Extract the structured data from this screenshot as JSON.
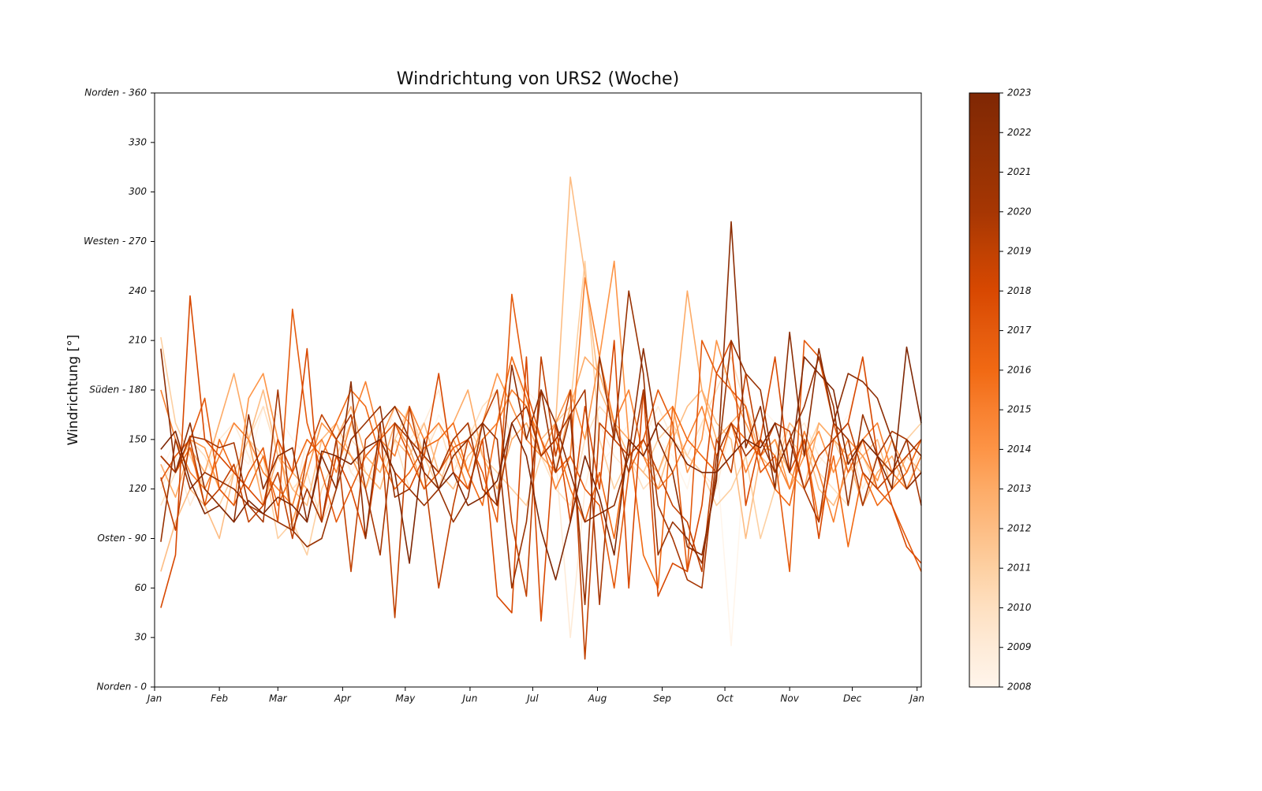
{
  "chart_data": {
    "type": "line",
    "title": "Windrichtung von URS2 (Woche)",
    "ylabel": "Windrichtung [°]",
    "x": [
      3,
      10,
      17,
      24,
      31,
      38,
      45,
      52,
      59,
      66,
      73,
      80,
      87,
      94,
      101,
      108,
      115,
      122,
      129,
      136,
      143,
      150,
      157,
      164,
      171,
      178,
      185,
      192,
      199,
      206,
      213,
      220,
      227,
      234,
      241,
      248,
      255,
      262,
      269,
      276,
      283,
      290,
      297,
      304,
      311,
      318,
      325,
      332,
      339,
      346,
      353,
      360,
      367
    ],
    "xlim": [
      0,
      367
    ],
    "xticks": [
      {
        "value": 0,
        "label": "Jan"
      },
      {
        "value": 31,
        "label": "Feb"
      },
      {
        "value": 59,
        "label": "Mar"
      },
      {
        "value": 90,
        "label": "Apr"
      },
      {
        "value": 120,
        "label": "May"
      },
      {
        "value": 151,
        "label": "Jun"
      },
      {
        "value": 181,
        "label": "Jul"
      },
      {
        "value": 212,
        "label": "Aug"
      },
      {
        "value": 243,
        "label": "Sep"
      },
      {
        "value": 273,
        "label": "Oct"
      },
      {
        "value": 304,
        "label": "Nov"
      },
      {
        "value": 334,
        "label": "Dec"
      },
      {
        "value": 365,
        "label": "Jan"
      }
    ],
    "ylim": [
      0,
      360
    ],
    "yticks": [
      {
        "value": 0,
        "label": "Norden - 0"
      },
      30,
      60,
      {
        "value": 90,
        "label": "Osten - 90"
      },
      120,
      150,
      {
        "value": 180,
        "label": "Süden - 180"
      },
      210,
      240,
      {
        "value": 270,
        "label": "Westen - 270"
      },
      300,
      330,
      {
        "value": 360,
        "label": "Norden - 360"
      }
    ],
    "series": [
      {
        "name": "2008",
        "color": "#fff5eb",
        "values": [
          130,
          150,
          140,
          160,
          150,
          145,
          135,
          170,
          165,
          150,
          140,
          160,
          150,
          130,
          145,
          170,
          160,
          150,
          140,
          165,
          150,
          145,
          160,
          175,
          190,
          180,
          170,
          160,
          150,
          140,
          135,
          145,
          160,
          170,
          150,
          140,
          120,
          160,
          140,
          25,
          150,
          170,
          160,
          150,
          140,
          135,
          150,
          165,
          195,
          140,
          120,
          130,
          135
        ]
      },
      {
        "name": "2009",
        "color": "#feebd8",
        "values": [
          120,
          140,
          110,
          130,
          150,
          160,
          140,
          120,
          130,
          110,
          150,
          140,
          160,
          130,
          120,
          140,
          170,
          150,
          160,
          180,
          140,
          120,
          150,
          160,
          200,
          170,
          150,
          140,
          30,
          120,
          160,
          140,
          130,
          150,
          170,
          150,
          140,
          130,
          120,
          160,
          150,
          140,
          130,
          150,
          160,
          140,
          130,
          150,
          120,
          140,
          130,
          120,
          145
        ]
      },
      {
        "name": "2010",
        "color": "#fee0c1",
        "values": [
          110,
          130,
          150,
          140,
          120,
          130,
          150,
          170,
          140,
          120,
          130,
          100,
          120,
          150,
          140,
          130,
          150,
          120,
          140,
          160,
          130,
          150,
          170,
          180,
          150,
          160,
          140,
          120,
          110,
          150,
          170,
          160,
          140,
          120,
          130,
          150,
          140,
          160,
          180,
          200,
          170,
          150,
          140,
          160,
          150,
          130,
          120,
          110,
          150,
          140,
          130,
          120,
          140
        ]
      },
      {
        "name": "2011",
        "color": "#fdd0a2",
        "values": [
          212,
          160,
          140,
          120,
          110,
          130,
          150,
          140,
          90,
          100,
          80,
          120,
          140,
          160,
          130,
          120,
          150,
          170,
          140,
          120,
          150,
          160,
          140,
          130,
          120,
          110,
          140,
          160,
          170,
          258,
          150,
          120,
          140,
          130,
          150,
          160,
          140,
          130,
          110,
          120,
          140,
          90,
          120,
          150,
          140,
          160,
          150,
          130,
          140,
          120,
          130,
          150,
          160
        ]
      },
      {
        "name": "2012",
        "color": "#fdbd84",
        "values": [
          70,
          100,
          120,
          110,
          90,
          130,
          150,
          180,
          140,
          120,
          110,
          150,
          160,
          140,
          130,
          120,
          150,
          140,
          160,
          130,
          120,
          140,
          150,
          160,
          180,
          170,
          150,
          160,
          309,
          250,
          180,
          160,
          140,
          130,
          120,
          150,
          170,
          180,
          160,
          150,
          90,
          140,
          130,
          160,
          150,
          120,
          110,
          130,
          140,
          150,
          120,
          140,
          130
        ]
      },
      {
        "name": "2013",
        "color": "#fdab67",
        "values": [
          135,
          115,
          145,
          130,
          160,
          190,
          150,
          110,
          140,
          130,
          120,
          100,
          150,
          170,
          140,
          130,
          160,
          145,
          120,
          150,
          160,
          180,
          140,
          120,
          150,
          160,
          140,
          130,
          170,
          200,
          190,
          160,
          150,
          140,
          130,
          155,
          240,
          180,
          150,
          160,
          170,
          140,
          150,
          130,
          120,
          160,
          150,
          140,
          110,
          130,
          140,
          120,
          130
        ]
      },
      {
        "name": "2014",
        "color": "#fd9446",
        "values": [
          140,
          130,
          150,
          145,
          120,
          110,
          175,
          190,
          150,
          100,
          130,
          160,
          150,
          140,
          120,
          150,
          170,
          160,
          140,
          130,
          150,
          130,
          160,
          190,
          170,
          150,
          140,
          160,
          180,
          150,
          200,
          258,
          150,
          140,
          160,
          170,
          130,
          150,
          210,
          180,
          160,
          140,
          150,
          120,
          140,
          155,
          130,
          150,
          140,
          125,
          150,
          130,
          150
        ]
      },
      {
        "name": "2015",
        "color": "#f8802f",
        "values": [
          180,
          150,
          130,
          120,
          140,
          160,
          150,
          130,
          120,
          110,
          140,
          150,
          130,
          160,
          185,
          150,
          140,
          170,
          150,
          160,
          145,
          120,
          150,
          160,
          180,
          170,
          150,
          120,
          140,
          248,
          200,
          160,
          180,
          140,
          120,
          130,
          150,
          170,
          140,
          160,
          130,
          150,
          140,
          120,
          155,
          130,
          100,
          140,
          150,
          160,
          130,
          120,
          140
        ]
      },
      {
        "name": "2016",
        "color": "#f16913",
        "values": [
          140,
          130,
          145,
          110,
          150,
          130,
          120,
          140,
          110,
          130,
          150,
          140,
          160,
          180,
          170,
          140,
          120,
          130,
          145,
          150,
          160,
          130,
          110,
          160,
          200,
          175,
          140,
          150,
          120,
          100,
          130,
          90,
          150,
          80,
          60,
          170,
          150,
          140,
          130,
          160,
          150,
          140,
          120,
          110,
          150,
          100,
          140,
          85,
          130,
          110,
          120,
          130,
          150
        ]
      },
      {
        "name": "2017",
        "color": "#e45a0d",
        "values": [
          125,
          140,
          150,
          175,
          120,
          110,
          130,
          145,
          100,
          229,
          160,
          130,
          100,
          120,
          140,
          150,
          160,
          140,
          120,
          130,
          145,
          150,
          130,
          100,
          238,
          180,
          150,
          130,
          140,
          120,
          110,
          60,
          130,
          150,
          180,
          160,
          70,
          210,
          190,
          180,
          170,
          130,
          140,
          70,
          210,
          200,
          160,
          130,
          150,
          120,
          110,
          90,
          70
        ]
      },
      {
        "name": "2018",
        "color": "#d84801",
        "values": [
          48,
          80,
          237,
          150,
          140,
          130,
          120,
          110,
          150,
          130,
          205,
          100,
          140,
          120,
          90,
          150,
          130,
          120,
          140,
          190,
          130,
          120,
          150,
          55,
          45,
          200,
          40,
          160,
          100,
          170,
          120,
          210,
          60,
          180,
          55,
          75,
          70,
          110,
          190,
          210,
          110,
          150,
          200,
          130,
          150,
          90,
          150,
          160,
          200,
          140,
          110,
          85,
          75
        ]
      },
      {
        "name": "2019",
        "color": "#c04102",
        "values": [
          127,
          95,
          150,
          110,
          120,
          135,
          100,
          110,
          130,
          90,
          140,
          165,
          150,
          70,
          150,
          160,
          42,
          170,
          130,
          60,
          110,
          150,
          160,
          180,
          100,
          55,
          200,
          140,
          180,
          17,
          160,
          150,
          140,
          150,
          130,
          110,
          100,
          70,
          150,
          130,
          190,
          140,
          160,
          155,
          120,
          140,
          150,
          160,
          130,
          120,
          130,
          140,
          150
        ]
      },
      {
        "name": "2020",
        "color": "#a63603",
        "values": [
          140,
          130,
          152,
          150,
          145,
          148,
          110,
          100,
          180,
          95,
          120,
          100,
          150,
          165,
          120,
          80,
          160,
          150,
          140,
          130,
          150,
          160,
          120,
          110,
          160,
          170,
          140,
          150,
          165,
          180,
          50,
          160,
          130,
          180,
          110,
          90,
          65,
          60,
          140,
          160,
          140,
          150,
          130,
          150,
          120,
          100,
          160,
          150,
          110,
          140,
          155,
          150,
          110
        ]
      },
      {
        "name": "2021",
        "color": "#983203",
        "values": [
          88,
          150,
          120,
          130,
          125,
          120,
          110,
          105,
          100,
          95,
          85,
          90,
          120,
          150,
          160,
          170,
          115,
          120,
          110,
          120,
          100,
          115,
          160,
          150,
          60,
          100,
          180,
          130,
          165,
          50,
          200,
          150,
          240,
          190,
          80,
          100,
          90,
          75,
          130,
          210,
          190,
          180,
          130,
          150,
          170,
          200,
          170,
          110,
          165,
          140,
          130,
          150,
          140
        ]
      },
      {
        "name": "2022",
        "color": "#8c2d04",
        "values": [
          205,
          130,
          160,
          120,
          110,
          100,
          165,
          120,
          140,
          145,
          100,
          140,
          120,
          185,
          90,
          160,
          170,
          150,
          130,
          120,
          140,
          150,
          160,
          110,
          195,
          150,
          180,
          160,
          130,
          100,
          105,
          110,
          140,
          205,
          150,
          130,
          85,
          80,
          125,
          282,
          145,
          170,
          120,
          215,
          140,
          205,
          160,
          190,
          185,
          175,
          150,
          120,
          130
        ]
      },
      {
        "name": "2023",
        "color": "#7f2704",
        "values": [
          144,
          155,
          125,
          105,
          110,
          100,
          113,
          105,
          115,
          110,
          100,
          143,
          140,
          135,
          145,
          150,
          130,
          75,
          150,
          120,
          130,
          110,
          115,
          125,
          160,
          140,
          95,
          65,
          100,
          140,
          115,
          80,
          150,
          140,
          160,
          150,
          135,
          130,
          130,
          140,
          150,
          145,
          160,
          130,
          200,
          190,
          180,
          135,
          150,
          140,
          120,
          206,
          160
        ]
      }
    ]
  }
}
